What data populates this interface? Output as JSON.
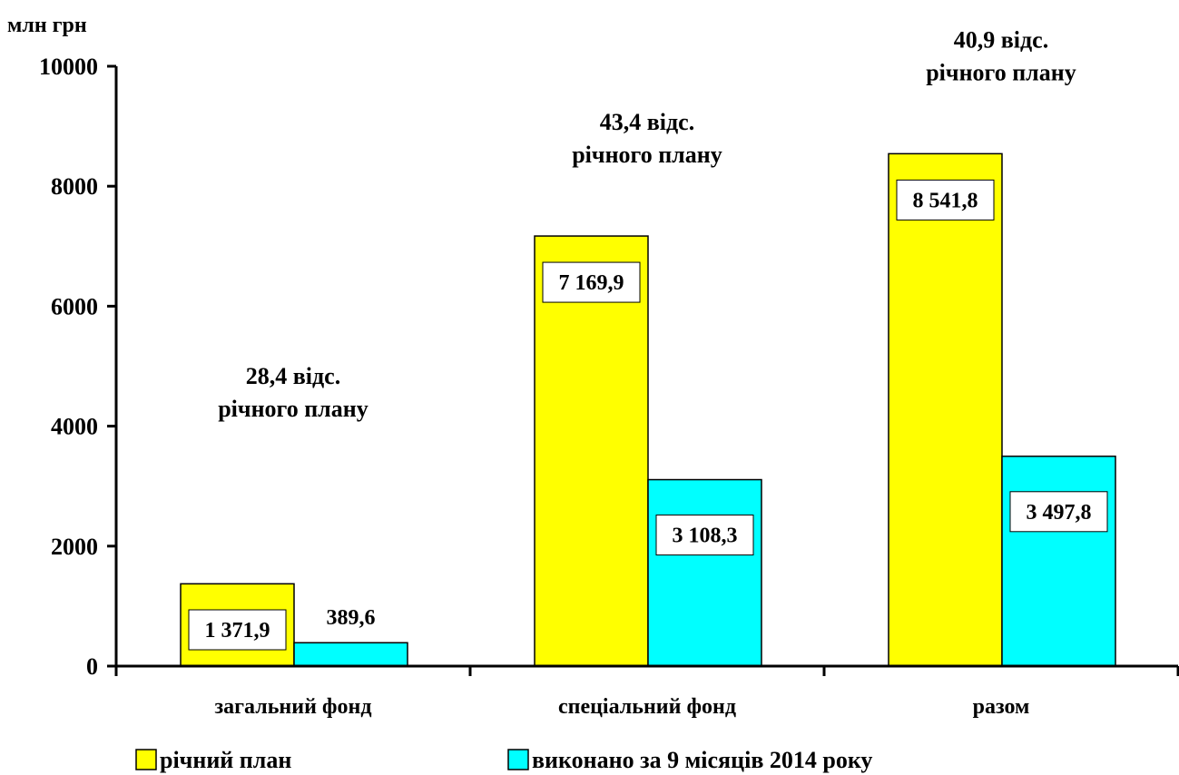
{
  "chart_data": {
    "type": "bar",
    "ylabel": "млн грн",
    "ylim": [
      0,
      10000
    ],
    "yticks": [
      0,
      2000,
      4000,
      6000,
      8000,
      10000
    ],
    "categories": [
      "загальний фонд",
      "спеціальний фонд",
      "разом"
    ],
    "series": [
      {
        "name": "річний план",
        "color": "#FFFF00",
        "values": [
          1371.9,
          7169.9,
          8541.8
        ],
        "labels": [
          "1 371,9",
          "7 169,9",
          "8 541,8"
        ]
      },
      {
        "name": "виконано за 9 місяців 2014 року",
        "color": "#00FFFF",
        "values": [
          389.6,
          3108.3,
          3497.8
        ],
        "labels": [
          "389,6",
          "3 108,3",
          "3 497,8"
        ]
      }
    ],
    "annotations": [
      {
        "line1": "28,4 відс.",
        "line2": "річного плану"
      },
      {
        "line1": "43,4 відс.",
        "line2": "річного плану"
      },
      {
        "line1": "40,9 відс.",
        "line2": "річного плану"
      }
    ],
    "legend_position": "bottom"
  }
}
